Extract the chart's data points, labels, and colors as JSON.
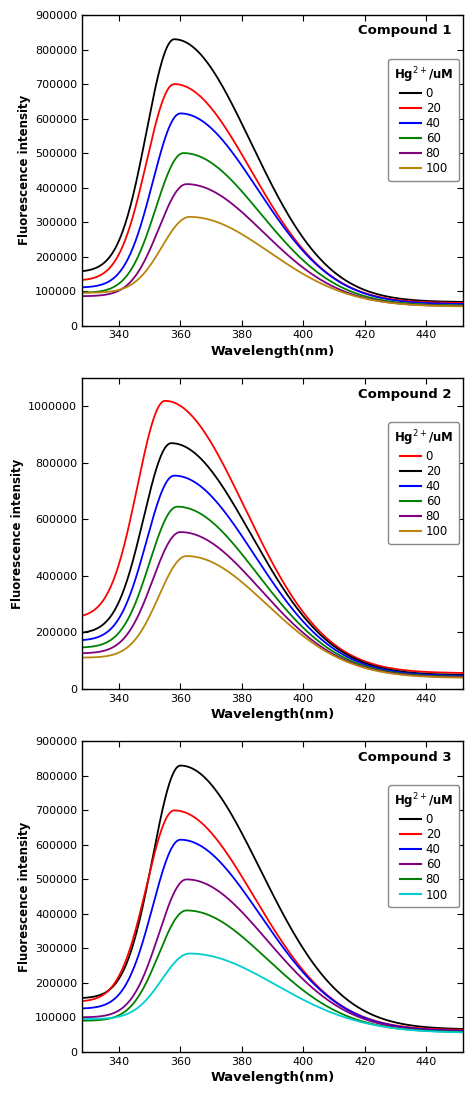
{
  "compounds": [
    "Compound 1",
    "Compound 2",
    "Compound 3"
  ],
  "xlabel": "Wavelength(nm)",
  "ylabel": "Fluorescence intensity",
  "hg_label": "Hg$^{2+}$/uM",
  "concentrations": [
    "0",
    "20",
    "40",
    "60",
    "80",
    "100"
  ],
  "xlim": [
    328,
    452
  ],
  "xticks": [
    340,
    360,
    380,
    400,
    420,
    440
  ],
  "compound1": {
    "ylim": [
      0,
      900000
    ],
    "yticks": [
      0,
      100000,
      200000,
      300000,
      400000,
      500000,
      600000,
      700000,
      800000,
      900000
    ],
    "colors": [
      "#000000",
      "#ff0000",
      "#0000ff",
      "#008000",
      "#800080",
      "#b8860b"
    ],
    "legend_order": [
      0,
      1,
      2,
      3,
      4,
      5
    ],
    "peak_wl": [
      358,
      358,
      360,
      361,
      362,
      363
    ],
    "peak_vals": [
      830000,
      700000,
      615000,
      500000,
      410000,
      315000
    ],
    "start_vals": [
      155000,
      130000,
      110000,
      95000,
      85000,
      95000
    ],
    "end_vals": [
      68000,
      65000,
      62000,
      58000,
      56000,
      55000
    ],
    "sigma_rise": [
      9,
      9,
      9,
      9,
      9,
      9
    ],
    "sigma_fall": [
      25,
      25,
      25,
      25,
      25,
      26
    ]
  },
  "compound2": {
    "ylim": [
      0,
      1100000
    ],
    "yticks": [
      0,
      200000,
      400000,
      600000,
      800000,
      1000000
    ],
    "colors": [
      "#ff0000",
      "#000000",
      "#0000ff",
      "#008000",
      "#800080",
      "#b8860b"
    ],
    "legend_order": [
      0,
      1,
      2,
      3,
      4,
      5
    ],
    "peak_wl": [
      355,
      357,
      358,
      359,
      360,
      362
    ],
    "peak_vals": [
      1020000,
      870000,
      755000,
      645000,
      555000,
      470000
    ],
    "start_vals": [
      250000,
      195000,
      170000,
      145000,
      125000,
      110000
    ],
    "end_vals": [
      55000,
      48000,
      45000,
      42000,
      40000,
      38000
    ],
    "sigma_rise": [
      9,
      9,
      9,
      9,
      9,
      9
    ],
    "sigma_fall": [
      26,
      26,
      26,
      26,
      26,
      26
    ]
  },
  "compound3": {
    "ylim": [
      0,
      900000
    ],
    "yticks": [
      0,
      100000,
      200000,
      300000,
      400000,
      500000,
      600000,
      700000,
      800000,
      900000
    ],
    "colors": [
      "#000000",
      "#ff0000",
      "#0000ff",
      "#800080",
      "#008000",
      "#00ced1"
    ],
    "legend_order": [
      0,
      1,
      2,
      3,
      4,
      5
    ],
    "peak_wl": [
      360,
      358,
      360,
      362,
      362,
      363
    ],
    "peak_vals": [
      830000,
      700000,
      615000,
      500000,
      410000,
      285000
    ],
    "start_vals": [
      155000,
      145000,
      125000,
      100000,
      90000,
      95000
    ],
    "end_vals": [
      65000,
      63000,
      60000,
      58000,
      57000,
      55000
    ],
    "sigma_rise": [
      9,
      9,
      9,
      9,
      9,
      9
    ],
    "sigma_fall": [
      26,
      26,
      26,
      26,
      26,
      28
    ]
  }
}
